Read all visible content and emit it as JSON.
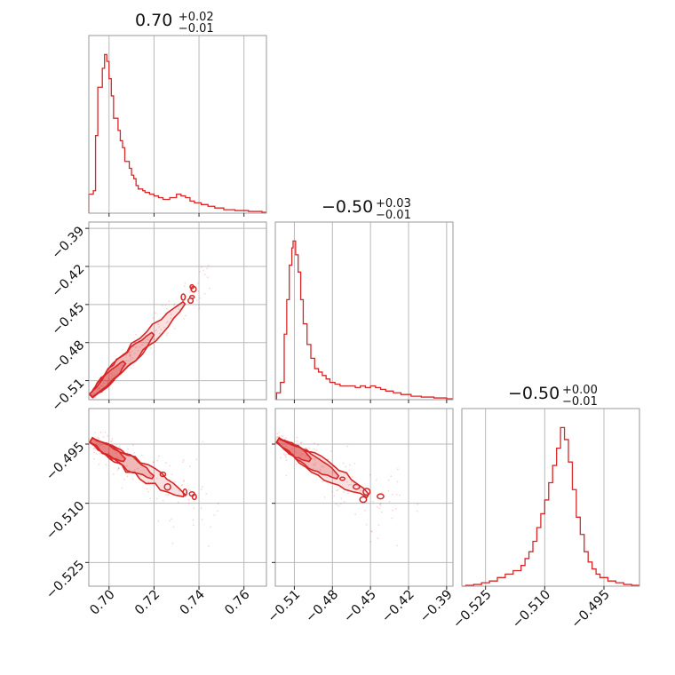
{
  "chart_data": {
    "type": "corner",
    "color": "#d62728",
    "grid": true,
    "panels": [
      {
        "id": "hist-p0",
        "type": "histogram",
        "row": 0,
        "col": 0,
        "title": {
          "main": "0.70",
          "sup": "+0.02",
          "sub": "−0.01"
        },
        "xlim": [
          0.691,
          0.77
        ],
        "ylim": [
          0,
          1.03
        ],
        "xgrid": [
          0.7,
          0.72,
          0.74,
          0.76
        ],
        "points": [
          [
            0.691,
            0.11
          ],
          [
            0.693,
            0.13
          ],
          [
            0.694,
            0.45
          ],
          [
            0.695,
            0.73
          ],
          [
            0.697,
            0.84
          ],
          [
            0.698,
            0.92
          ],
          [
            0.699,
            0.88
          ],
          [
            0.7,
            0.78
          ],
          [
            0.701,
            0.68
          ],
          [
            0.702,
            0.55
          ],
          [
            0.704,
            0.48
          ],
          [
            0.705,
            0.42
          ],
          [
            0.706,
            0.38
          ],
          [
            0.707,
            0.3
          ],
          [
            0.709,
            0.26
          ],
          [
            0.71,
            0.22
          ],
          [
            0.711,
            0.2
          ],
          [
            0.712,
            0.16
          ],
          [
            0.713,
            0.14
          ],
          [
            0.715,
            0.13
          ],
          [
            0.716,
            0.12
          ],
          [
            0.718,
            0.11
          ],
          [
            0.72,
            0.1
          ],
          [
            0.722,
            0.09
          ],
          [
            0.724,
            0.08
          ],
          [
            0.727,
            0.09
          ],
          [
            0.73,
            0.11
          ],
          [
            0.732,
            0.1
          ],
          [
            0.734,
            0.09
          ],
          [
            0.736,
            0.07
          ],
          [
            0.738,
            0.06
          ],
          [
            0.741,
            0.05
          ],
          [
            0.744,
            0.04
          ],
          [
            0.747,
            0.03
          ],
          [
            0.751,
            0.02
          ],
          [
            0.756,
            0.015
          ],
          [
            0.762,
            0.01
          ],
          [
            0.768,
            0.005
          ]
        ]
      },
      {
        "id": "scatter-p1-p0",
        "type": "contour",
        "row": 1,
        "col": 0,
        "xlim": [
          0.691,
          0.77
        ],
        "ylim": [
          -0.525,
          -0.385
        ],
        "xgrid": [
          0.7,
          0.72,
          0.74,
          0.76
        ],
        "ygrid": [
          -0.51,
          -0.48,
          -0.45,
          -0.42,
          -0.39
        ],
        "yticks": [
          "−0.39",
          "−0.42",
          "−0.45",
          "−0.48",
          "−0.51"
        ],
        "yticks_values": [
          -0.39,
          -0.42,
          -0.45,
          -0.48,
          -0.51
        ],
        "ridge": {
          "x": [
            0.692,
            0.745
          ],
          "y": [
            -0.522,
            -0.428
          ]
        },
        "spread": [
          0.0015,
          0.004
        ],
        "scatter_count": 140
      },
      {
        "id": "hist-p1",
        "type": "histogram",
        "row": 1,
        "col": 1,
        "title": {
          "main": "−0.50",
          "sup": "+0.03",
          "sub": "−0.01"
        },
        "xlim": [
          -0.525,
          -0.385
        ],
        "ylim": [
          0,
          1.03
        ],
        "xgrid": [
          -0.51,
          -0.48,
          -0.45,
          -0.42,
          -0.39
        ],
        "points": [
          [
            -0.524,
            0.04
          ],
          [
            -0.521,
            0.1
          ],
          [
            -0.518,
            0.38
          ],
          [
            -0.516,
            0.58
          ],
          [
            -0.514,
            0.78
          ],
          [
            -0.512,
            0.88
          ],
          [
            -0.511,
            0.92
          ],
          [
            -0.509,
            0.84
          ],
          [
            -0.507,
            0.74
          ],
          [
            -0.505,
            0.58
          ],
          [
            -0.503,
            0.44
          ],
          [
            -0.5,
            0.32
          ],
          [
            -0.497,
            0.24
          ],
          [
            -0.494,
            0.18
          ],
          [
            -0.491,
            0.16
          ],
          [
            -0.488,
            0.14
          ],
          [
            -0.485,
            0.12
          ],
          [
            -0.482,
            0.1
          ],
          [
            -0.478,
            0.09
          ],
          [
            -0.474,
            0.08
          ],
          [
            -0.47,
            0.08
          ],
          [
            -0.466,
            0.08
          ],
          [
            -0.462,
            0.07
          ],
          [
            -0.458,
            0.08
          ],
          [
            -0.454,
            0.07
          ],
          [
            -0.45,
            0.08
          ],
          [
            -0.446,
            0.07
          ],
          [
            -0.442,
            0.06
          ],
          [
            -0.438,
            0.05
          ],
          [
            -0.432,
            0.04
          ],
          [
            -0.426,
            0.03
          ],
          [
            -0.418,
            0.02
          ],
          [
            -0.41,
            0.015
          ],
          [
            -0.4,
            0.01
          ],
          [
            -0.39,
            0.005
          ]
        ]
      },
      {
        "id": "scatter-p2-p0",
        "type": "contour",
        "row": 2,
        "col": 0,
        "xlim": [
          0.691,
          0.77
        ],
        "ylim": [
          -0.531,
          -0.486
        ],
        "xgrid": [
          0.7,
          0.72,
          0.74,
          0.76
        ],
        "ygrid": [
          -0.495,
          -0.51,
          -0.525
        ],
        "yticks": [
          "−0.495",
          "−0.510",
          "−0.525"
        ],
        "yticks_values": [
          -0.495,
          -0.51,
          -0.525
        ],
        "xticks": [
          "0.70",
          "0.72",
          "0.74",
          "0.76"
        ],
        "xticks_values": [
          0.7,
          0.72,
          0.74,
          0.76
        ],
        "ridge": {
          "x": [
            0.692,
            0.745
          ],
          "y": [
            -0.494,
            -0.512
          ]
        },
        "spread": [
          0.003,
          0.0025
        ],
        "scatter_count": 150
      },
      {
        "id": "scatter-p2-p1",
        "type": "contour",
        "row": 2,
        "col": 1,
        "xlim": [
          -0.525,
          -0.385
        ],
        "ylim": [
          -0.531,
          -0.486
        ],
        "xgrid": [
          -0.51,
          -0.48,
          -0.45,
          -0.42,
          -0.39
        ],
        "ygrid": [
          -0.495,
          -0.51,
          -0.525
        ],
        "xticks": [
          "−0.51",
          "−0.48",
          "−0.45",
          "−0.42",
          "−0.39"
        ],
        "xticks_values": [
          -0.51,
          -0.48,
          -0.45,
          -0.42,
          -0.39
        ],
        "ridge": {
          "x": [
            -0.523,
            -0.432
          ],
          "y": [
            -0.494,
            -0.512
          ]
        },
        "spread": [
          0.005,
          0.0025
        ],
        "scatter_count": 150
      },
      {
        "id": "hist-p2",
        "type": "histogram",
        "row": 2,
        "col": 2,
        "title": {
          "main": "−0.50",
          "sup": "+0.00",
          "sub": "−0.01"
        },
        "xlim": [
          -0.531,
          -0.486
        ],
        "ylim": [
          0,
          1.03
        ],
        "xgrid": [
          -0.525,
          -0.51,
          -0.495
        ],
        "xticks": [
          "−0.525",
          "−0.510",
          "−0.495"
        ],
        "xticks_values": [
          -0.525,
          -0.51,
          -0.495
        ],
        "points": [
          [
            -0.531,
            0.0
          ],
          [
            -0.53,
            0.005
          ],
          [
            -0.528,
            0.01
          ],
          [
            -0.526,
            0.02
          ],
          [
            -0.524,
            0.03
          ],
          [
            -0.522,
            0.05
          ],
          [
            -0.52,
            0.07
          ],
          [
            -0.518,
            0.09
          ],
          [
            -0.516,
            0.12
          ],
          [
            -0.515,
            0.16
          ],
          [
            -0.514,
            0.2
          ],
          [
            -0.513,
            0.26
          ],
          [
            -0.512,
            0.34
          ],
          [
            -0.511,
            0.42
          ],
          [
            -0.51,
            0.5
          ],
          [
            -0.509,
            0.6
          ],
          [
            -0.508,
            0.7
          ],
          [
            -0.507,
            0.8
          ],
          [
            -0.506,
            0.92
          ],
          [
            -0.505,
            0.85
          ],
          [
            -0.504,
            0.72
          ],
          [
            -0.503,
            0.56
          ],
          [
            -0.502,
            0.4
          ],
          [
            -0.501,
            0.3
          ],
          [
            -0.5,
            0.2
          ],
          [
            -0.499,
            0.14
          ],
          [
            -0.498,
            0.1
          ],
          [
            -0.497,
            0.07
          ],
          [
            -0.496,
            0.05
          ],
          [
            -0.494,
            0.03
          ],
          [
            -0.492,
            0.02
          ],
          [
            -0.49,
            0.01
          ],
          [
            -0.488,
            0.005
          ]
        ]
      }
    ]
  }
}
